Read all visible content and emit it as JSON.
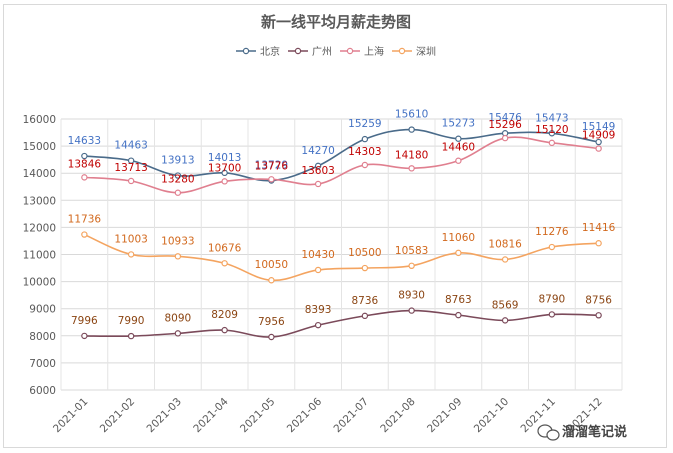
{
  "chart_data": {
    "type": "line",
    "title": "新一线平均月薪走势图",
    "categories": [
      "2021-01",
      "2021-02",
      "2021-03",
      "2021-04",
      "2021-05",
      "2021-06",
      "2021-07",
      "2021-08",
      "2021-09",
      "2021-10",
      "2021-11",
      "2021-12"
    ],
    "ylim": [
      6000,
      16000
    ],
    "yticks": [
      "6000",
      "7000",
      "8000",
      "9000",
      "10000",
      "11000",
      "12000",
      "13000",
      "14000",
      "15000",
      "16000"
    ],
    "grid": true,
    "legend_position": "top",
    "series": [
      {
        "name": "北京",
        "color": "#4a6b8a",
        "label_color": "#4472c4",
        "values": [
          14633,
          14463,
          13913,
          14013,
          13729,
          14270,
          15259,
          15610,
          15273,
          15476,
          15473,
          15149
        ]
      },
      {
        "name": "广州",
        "color": "#7b4a5a",
        "label_color": "#8b4513",
        "values": [
          7996,
          7990,
          8090,
          8209,
          7956,
          8393,
          8736,
          8930,
          8763,
          8569,
          8790,
          8756
        ]
      },
      {
        "name": "上海",
        "color": "#e07f8f",
        "label_color": "#c00000",
        "values": [
          13846,
          13713,
          13280,
          13700,
          13776,
          13603,
          14303,
          14180,
          14460,
          15296,
          15120,
          14909
        ]
      },
      {
        "name": "深圳",
        "color": "#f4a460",
        "label_color": "#d2691e",
        "values": [
          11736,
          11003,
          10933,
          10676,
          10050,
          10430,
          10500,
          10583,
          11060,
          10816,
          11276,
          11416
        ]
      }
    ]
  },
  "watermark": {
    "icon": "wechat-icon",
    "text": "溜溜笔记说"
  }
}
